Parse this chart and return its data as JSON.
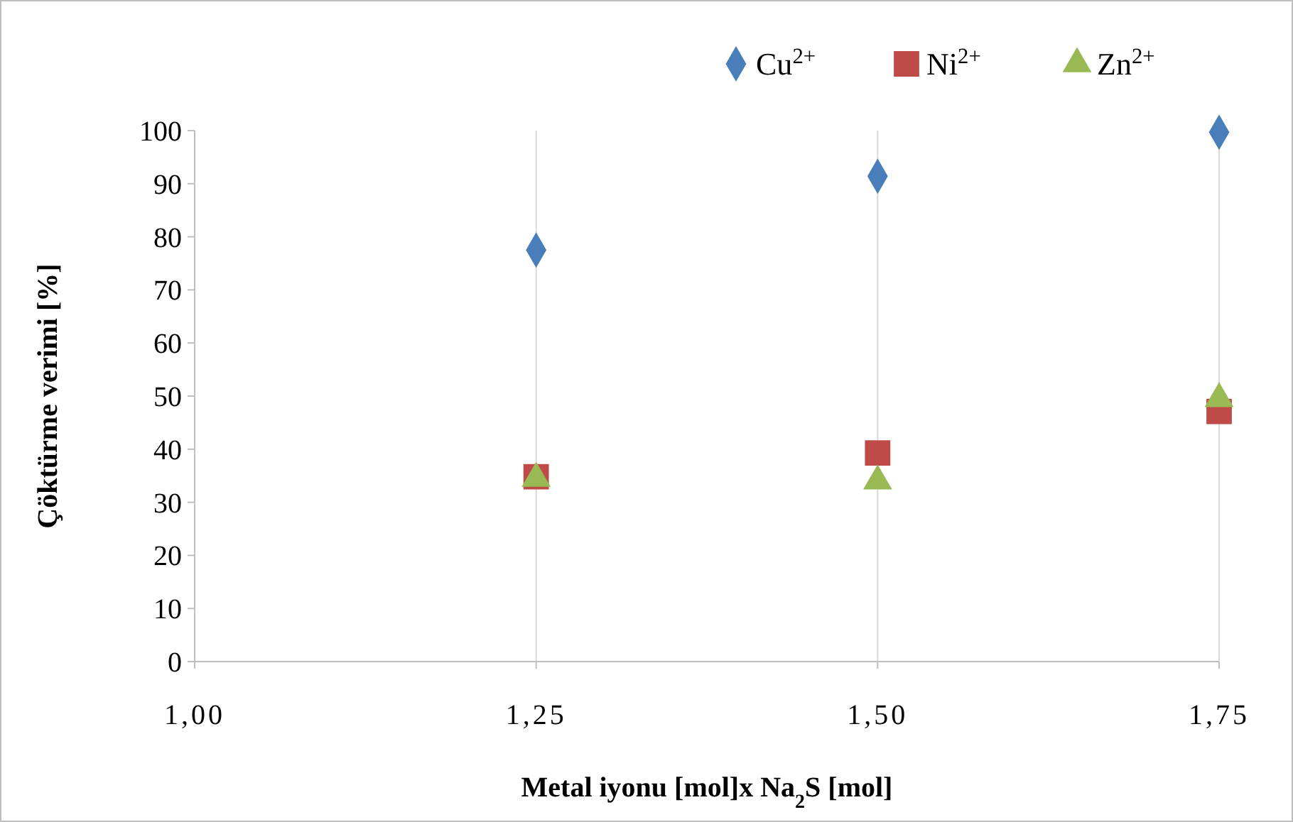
{
  "chart_data": {
    "type": "scatter",
    "xlabel": "Metal iyonu [mol]x Na$_{2}$S [mol]",
    "ylabel": "Çöktürme verimi [%]",
    "xlim": [
      1,
      1.75
    ],
    "xticks": [
      {
        "value": 1,
        "label": "1,00"
      },
      {
        "value": 1.25,
        "label": "1,25"
      },
      {
        "value": 1.5,
        "label": "1,50"
      },
      {
        "value": 1.75,
        "label": "1,75"
      }
    ],
    "ylim": [
      0,
      100
    ],
    "yticks": [
      0,
      10,
      20,
      30,
      40,
      50,
      60,
      70,
      80,
      90,
      100
    ],
    "grid": "x",
    "legend": "top right",
    "series": [
      {
        "name": "Cu$^{2+}$",
        "color": "#4a7ebb",
        "marker": "diamond",
        "x": [
          1.25,
          1.5,
          1.75
        ],
        "values": [
          77.5,
          91.4,
          99.7
        ]
      },
      {
        "name": "Ni$^{2+}$",
        "color": "#be4b48",
        "marker": "square",
        "x": [
          1.25,
          1.5,
          1.75
        ],
        "values": [
          34.8,
          39.3,
          47.1
        ]
      },
      {
        "name": "Zn$^{2+}$",
        "color": "#98b954",
        "marker": "triangle",
        "x": [
          1.25,
          1.5,
          1.75
        ],
        "values": [
          34.5,
          34,
          49.5
        ]
      }
    ]
  }
}
